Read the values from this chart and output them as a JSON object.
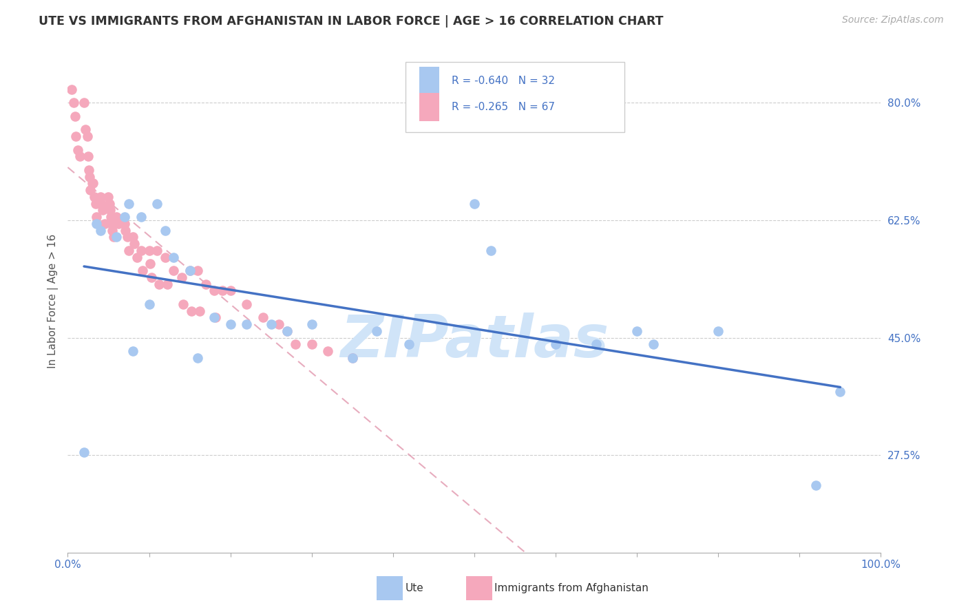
{
  "title": "UTE VS IMMIGRANTS FROM AFGHANISTAN IN LABOR FORCE | AGE > 16 CORRELATION CHART",
  "source": "Source: ZipAtlas.com",
  "ylabel": "In Labor Force | Age > 16",
  "xlim": [
    0.0,
    1.0
  ],
  "ylim": [
    0.13,
    0.88
  ],
  "ytick_right_labels": [
    "27.5%",
    "45.0%",
    "62.5%",
    "80.0%"
  ],
  "ytick_right_values": [
    0.275,
    0.45,
    0.625,
    0.8
  ],
  "legend_label_ute": "Ute",
  "legend_label_afg": "Immigrants from Afghanistan",
  "color_ute": "#a8c8f0",
  "color_afg": "#f5a8bc",
  "color_ute_line": "#4472c4",
  "color_afg_line": "#e090a8",
  "color_tick_labels": "#4472c4",
  "watermark": "ZIPatlas",
  "watermark_color": "#d0e4f8",
  "background_color": "#ffffff",
  "grid_color": "#cccccc",
  "ute_x": [
    0.02,
    0.035,
    0.04,
    0.06,
    0.07,
    0.075,
    0.08,
    0.09,
    0.1,
    0.11,
    0.12,
    0.13,
    0.15,
    0.16,
    0.18,
    0.2,
    0.22,
    0.25,
    0.27,
    0.3,
    0.35,
    0.38,
    0.42,
    0.5,
    0.52,
    0.6,
    0.65,
    0.7,
    0.72,
    0.8,
    0.92,
    0.95
  ],
  "ute_y": [
    0.28,
    0.62,
    0.61,
    0.6,
    0.63,
    0.65,
    0.43,
    0.63,
    0.5,
    0.65,
    0.61,
    0.57,
    0.55,
    0.42,
    0.48,
    0.47,
    0.47,
    0.47,
    0.46,
    0.47,
    0.42,
    0.46,
    0.44,
    0.65,
    0.58,
    0.44,
    0.44,
    0.46,
    0.44,
    0.46,
    0.23,
    0.37
  ],
  "afg_x": [
    0.005,
    0.007,
    0.009,
    0.01,
    0.012,
    0.015,
    0.02,
    0.022,
    0.024,
    0.025,
    0.026,
    0.027,
    0.028,
    0.03,
    0.031,
    0.033,
    0.034,
    0.035,
    0.04,
    0.041,
    0.043,
    0.045,
    0.05,
    0.051,
    0.052,
    0.053,
    0.054,
    0.055,
    0.056,
    0.06,
    0.062,
    0.07,
    0.071,
    0.073,
    0.075,
    0.08,
    0.082,
    0.085,
    0.09,
    0.092,
    0.1,
    0.101,
    0.103,
    0.11,
    0.112,
    0.12,
    0.122,
    0.13,
    0.14,
    0.142,
    0.15,
    0.152,
    0.16,
    0.162,
    0.17,
    0.18,
    0.182,
    0.19,
    0.2,
    0.22,
    0.24,
    0.26,
    0.27,
    0.28,
    0.3,
    0.32,
    0.35
  ],
  "afg_y": [
    0.82,
    0.8,
    0.78,
    0.75,
    0.73,
    0.72,
    0.8,
    0.76,
    0.75,
    0.72,
    0.7,
    0.69,
    0.67,
    0.68,
    0.68,
    0.66,
    0.65,
    0.63,
    0.66,
    0.65,
    0.64,
    0.62,
    0.66,
    0.65,
    0.64,
    0.63,
    0.62,
    0.61,
    0.6,
    0.63,
    0.62,
    0.62,
    0.61,
    0.6,
    0.58,
    0.6,
    0.59,
    0.57,
    0.58,
    0.55,
    0.58,
    0.56,
    0.54,
    0.58,
    0.53,
    0.57,
    0.53,
    0.55,
    0.54,
    0.5,
    0.55,
    0.49,
    0.55,
    0.49,
    0.53,
    0.52,
    0.48,
    0.52,
    0.52,
    0.5,
    0.48,
    0.47,
    0.46,
    0.44,
    0.44,
    0.43,
    0.42
  ]
}
